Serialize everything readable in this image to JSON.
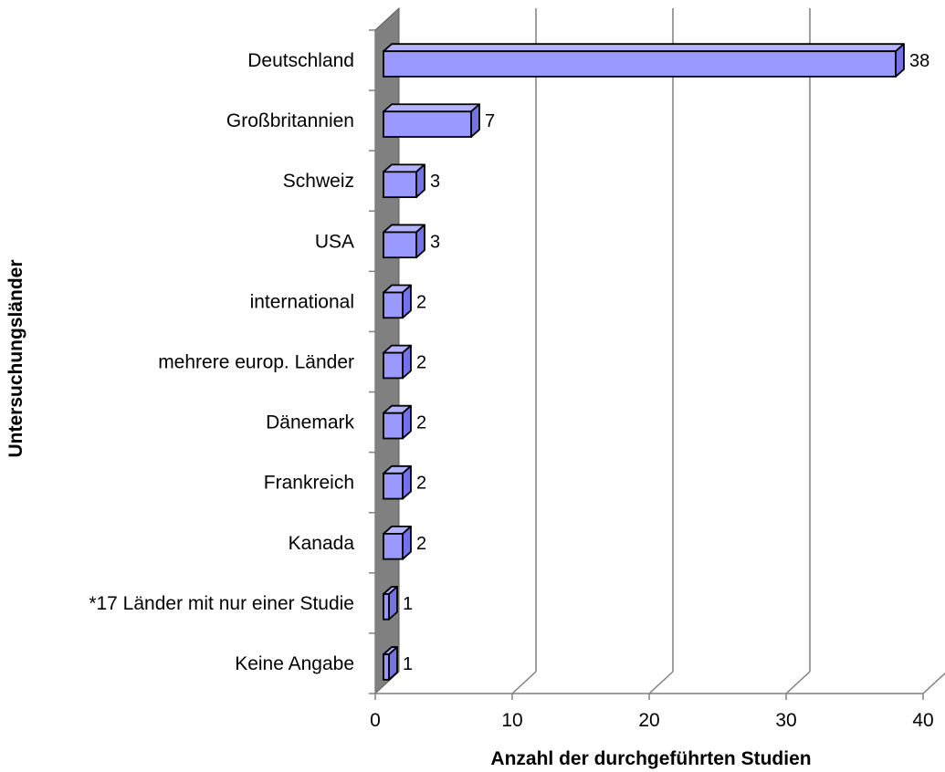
{
  "chart_data": {
    "type": "bar",
    "orientation": "horizontal",
    "style": "3d",
    "categories": [
      "Deutschland",
      "Großbritannien",
      "Schweiz",
      "USA",
      "international",
      "mehrere europ. Länder",
      "Dänemark",
      "Frankreich",
      "Kanada",
      "*17 Länder mit nur einer Studie",
      "Keine Angabe"
    ],
    "values": [
      38,
      7,
      3,
      3,
      2,
      2,
      2,
      2,
      2,
      1,
      1
    ],
    "xlabel": "Anzahl der durchgeführten Studien",
    "ylabel": "Untersuchungsländer",
    "xlim": [
      0,
      40
    ],
    "xticks": [
      0,
      10,
      20,
      30,
      40
    ],
    "grid": true,
    "legend": "none",
    "data_labels": true,
    "colors": {
      "bar_front": "#9999ff",
      "bar_top": "#b3b3ff",
      "bar_side": "#7373e6",
      "bar_edge": "#000000",
      "wall": "#808080",
      "gridline": "#808080"
    }
  }
}
